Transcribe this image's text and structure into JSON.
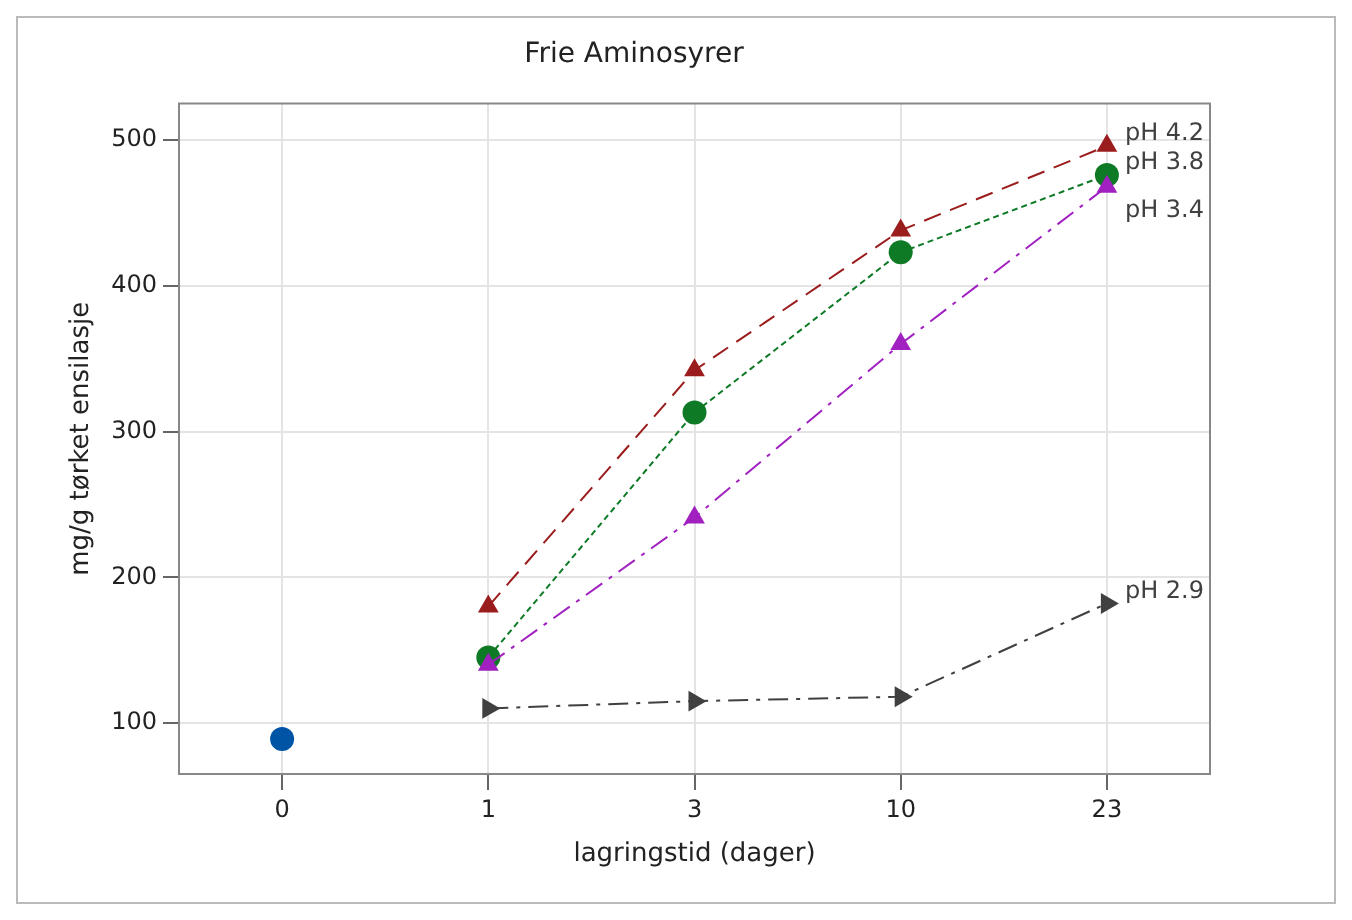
{
  "chart_data": {
    "type": "line",
    "title": "Frie Aminosyrer",
    "xlabel": "lagringstid (dager)",
    "ylabel": "mg/g tørket ensilasje",
    "categories": [
      "0",
      "1",
      "3",
      "10",
      "23"
    ],
    "ylim": [
      65,
      525
    ],
    "yticks": [
      100,
      200,
      300,
      400,
      500
    ],
    "grid": true,
    "legend": false,
    "series": [
      {
        "color": "#0054a6",
        "marker": "circle",
        "line_style": "none",
        "values": [
          89,
          null,
          null,
          null,
          null
        ]
      },
      {
        "name": "pH 4.2",
        "color": "#9b1c1c",
        "marker": "triangle",
        "line_style": "dashed",
        "values": [
          null,
          180,
          342,
          438,
          496
        ]
      },
      {
        "name": "pH 3.8",
        "color": "#0e7a26",
        "marker": "circle",
        "line_style": "dotted",
        "values": [
          null,
          145,
          313,
          423,
          476
        ]
      },
      {
        "name": "pH 3.4",
        "color": "#a020c0",
        "marker": "triangle",
        "line_style": "dashdot",
        "values": [
          null,
          140,
          241,
          360,
          468
        ]
      },
      {
        "name": "pH 2.9",
        "color": "#404040",
        "marker": "triangle-right",
        "line_style": "dashdot",
        "values": [
          null,
          110,
          115,
          118,
          182
        ]
      }
    ]
  }
}
